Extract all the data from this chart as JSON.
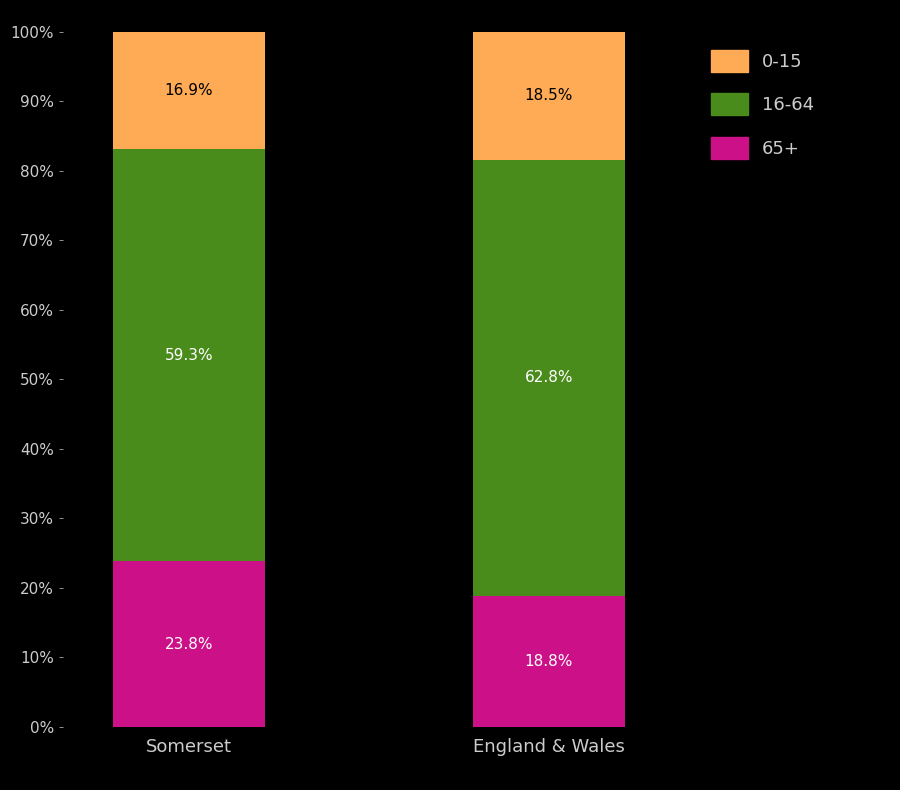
{
  "categories": [
    "Somerset",
    "England & Wales"
  ],
  "segments": {
    "65+": [
      23.8,
      18.8
    ],
    "16-64": [
      59.3,
      62.8
    ],
    "0-15": [
      16.9,
      18.5
    ]
  },
  "colors": {
    "0-15": "#FFAA55",
    "16-64": "#4A8C1C",
    "65+": "#CC1188"
  },
  "label_colors": {
    "0-15": "#000000",
    "16-64": "#FFFFFF",
    "65+": "#FFFFFF"
  },
  "yticks": [
    0,
    10,
    20,
    30,
    40,
    50,
    60,
    70,
    80,
    90,
    100
  ],
  "ytick_labels": [
    "0%",
    "10%",
    "20%",
    "30%",
    "40%",
    "50%",
    "60%",
    "70%",
    "80%",
    "90%",
    "100%"
  ],
  "background_color": "#000000",
  "text_color": "#CCCCCC",
  "bar_width": 0.42,
  "legend_labels": [
    "0-15",
    "16-64",
    "65+"
  ],
  "figsize": [
    9.0,
    7.9
  ],
  "dpi": 100
}
